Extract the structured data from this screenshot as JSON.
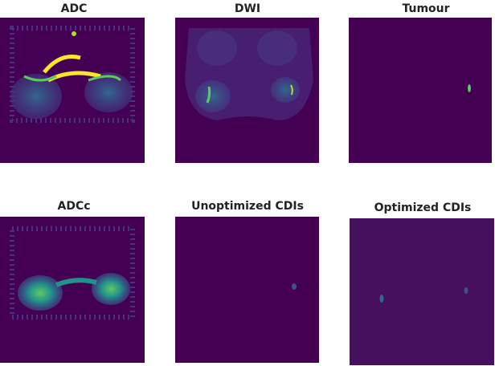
{
  "panels": [
    {
      "title": "ADC"
    },
    {
      "title": "DWI"
    },
    {
      "title": "Tumour"
    },
    {
      "title": "ADCc"
    },
    {
      "title": "Unoptimized CDIs"
    },
    {
      "title": "Optimized CDIs"
    }
  ]
}
